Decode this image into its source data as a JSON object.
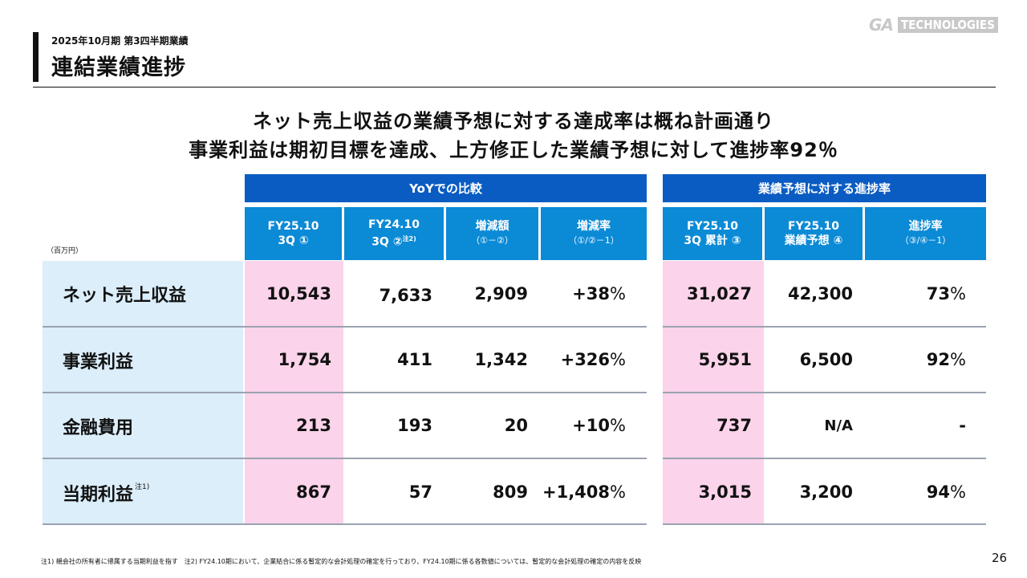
{
  "header": {
    "subtitle": "2025年10月期 第3四半期業績",
    "title": "連結業績進捗",
    "logo_left": "GA",
    "logo_right": "TECHNOLOGIES"
  },
  "headline": {
    "line1": "ネット売上収益の業績予想に対する達成率は概ね計画通り",
    "line2": "事業利益は期初目標を達成、上方修正した業績予想に対して進捗率92％"
  },
  "table": {
    "unit": "（百万円）",
    "group_yoy": "YoYでの比較",
    "group_forecast": "業績予想に対する進捗率",
    "columns": [
      {
        "l1": "FY25.10",
        "l2": "3Q ①",
        "sup": ""
      },
      {
        "l1": "FY24.10",
        "l2": "3Q ②",
        "sup": "注2)"
      },
      {
        "l1": "増減額",
        "l2": "（①－②）",
        "sup": ""
      },
      {
        "l1": "増減率",
        "l2": "（①/②－1）",
        "sup": ""
      },
      {
        "l1": "FY25.10",
        "l2": "3Q 累計 ③",
        "sup": ""
      },
      {
        "l1": "FY25.10",
        "l2": "業績予想 ④",
        "sup": ""
      },
      {
        "l1": "進捗率",
        "l2": "（③/④－1）",
        "sup": ""
      }
    ],
    "rows": [
      {
        "label": "ネット売上収益",
        "note": "",
        "fy25_3q": "10,543",
        "fy24_3q": "7,633",
        "diff": "2,909",
        "rate": "+38",
        "rate_pct": "%",
        "cum": "31,027",
        "forecast": "42,300",
        "progress": "73",
        "progress_pct": "%"
      },
      {
        "label": "事業利益",
        "note": "",
        "fy25_3q": "1,754",
        "fy24_3q": "411",
        "diff": "1,342",
        "rate": "+326",
        "rate_pct": "%",
        "cum": "5,951",
        "forecast": "6,500",
        "progress": "92",
        "progress_pct": "%"
      },
      {
        "label": "金融費用",
        "note": "",
        "fy25_3q": "213",
        "fy24_3q": "193",
        "diff": "20",
        "rate": "+10",
        "rate_pct": "%",
        "cum": "737",
        "forecast": "N/A",
        "progress": "-",
        "progress_pct": ""
      },
      {
        "label": "当期利益",
        "note": "注1)",
        "fy25_3q": "867",
        "fy24_3q": "57",
        "diff": "809",
        "rate": "+1,408",
        "rate_pct": "%",
        "cum": "3,015",
        "forecast": "3,200",
        "progress": "94",
        "progress_pct": "%"
      }
    ]
  },
  "footnote": "注1) 親会社の所有者に帰属する当期利益を指す　注2) FY24.10期において、企業結合に係る暫定的な会計処理の確定を行っており、FY24.10期に係る各数値については、暫定的な会計処理の確定の内容を反映",
  "page_number": "26"
}
